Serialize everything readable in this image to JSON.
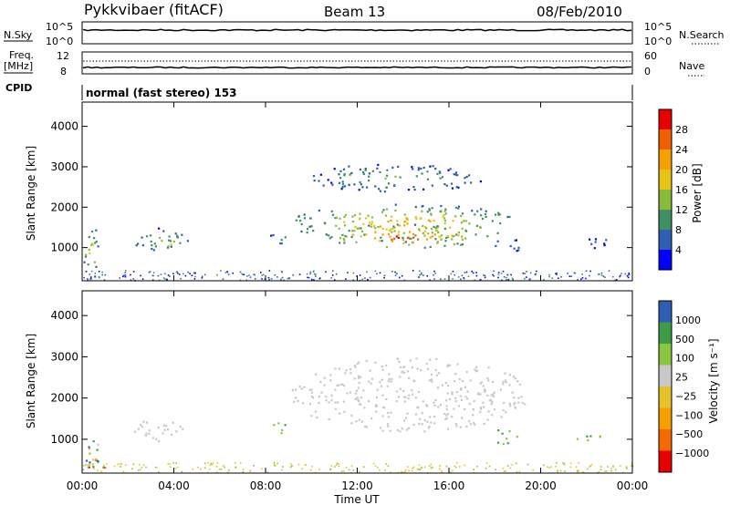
{
  "header": {
    "station": "Pykkvibaer (fitACF)",
    "beam": "Beam 13",
    "date": "08/Feb/2010"
  },
  "status_panels": {
    "nsky_label": "N.Sky",
    "nsearch_label": "N.Search",
    "nsky_ticks": [
      "10^5",
      "10^0"
    ],
    "nsearch_ticks": [
      "10^5",
      "10^0"
    ],
    "freq_label_line1": "Freq.",
    "freq_label_line2": "[MHz]",
    "freq_ticks": [
      "12",
      "8"
    ],
    "nave_label": "Nave",
    "nave_ticks": [
      "60",
      "0"
    ],
    "cpid_label": "CPID",
    "cpid_text": "normal (fast stereo) 153"
  },
  "colors": {
    "power_scale": [
      "#0000ff",
      "#2e5fb0",
      "#3f8f65",
      "#88bb3a",
      "#e5c417",
      "#f3a000",
      "#f06000",
      "#e80000"
    ],
    "velocity_scale": [
      "#e80000",
      "#f36a00",
      "#f5a000",
      "#e7c12b",
      "#c8c8c8",
      "#88c83e",
      "#3f9b4a",
      "#2f5fb5"
    ],
    "ground_scatter": "#c8c8c8"
  },
  "chart_data": [
    {
      "type": "heatmap",
      "name": "power",
      "x_unit": "hours UT",
      "y_unit": "km",
      "xlim": [
        0,
        24
      ],
      "ylim": [
        180,
        4600
      ],
      "xlabel": "Time UT",
      "ylabel": "Slant Range [km]",
      "y_ticks": [
        1000,
        2000,
        3000,
        4000
      ],
      "x_ticks": [
        "00:00",
        "04:00",
        "08:00",
        "12:00",
        "16:00",
        "20:00",
        "00:00"
      ],
      "colorbar_label": "Power [dB]",
      "colorbar_ticks": [
        "28",
        "24",
        "20",
        "16",
        "12",
        "8",
        "4"
      ],
      "colorbar_range": [
        0,
        30
      ],
      "blobs": [
        {
          "t0": 2.1,
          "t1": 4.6,
          "r0": 950,
          "r1": 1500,
          "peak": 14
        },
        {
          "t0": 2.8,
          "t1": 4.3,
          "r0": 1000,
          "r1": 1250,
          "peak": 20
        },
        {
          "t0": 9.0,
          "t1": 19.0,
          "r0": 1150,
          "r1": 2100,
          "peak": 22
        },
        {
          "t0": 10.5,
          "t1": 17.5,
          "r0": 1000,
          "r1": 1600,
          "peak": 27
        },
        {
          "t0": 9.8,
          "t1": 17.5,
          "r0": 2400,
          "r1": 3100,
          "peak": 12
        },
        {
          "t0": 8.2,
          "t1": 9.1,
          "r0": 1100,
          "r1": 1500,
          "peak": 10
        },
        {
          "t0": 17.8,
          "t1": 19.2,
          "r0": 900,
          "r1": 1300,
          "peak": 8
        },
        {
          "t0": 0.0,
          "t1": 0.7,
          "r0": 200,
          "r1": 1600,
          "peak": 18
        },
        {
          "t0": 21.8,
          "t1": 23.0,
          "r0": 1000,
          "r1": 1300,
          "peak": 6
        }
      ]
    },
    {
      "type": "heatmap",
      "name": "velocity",
      "x_unit": "hours UT",
      "y_unit": "km",
      "xlim": [
        0,
        24
      ],
      "ylim": [
        180,
        4600
      ],
      "xlabel": "Time UT",
      "ylabel": "Slant Range [km]",
      "y_ticks": [
        1000,
        2000,
        3000,
        4000
      ],
      "x_ticks": [
        "00:00",
        "04:00",
        "08:00",
        "12:00",
        "16:00",
        "20:00",
        "00:00"
      ],
      "colorbar_label": "Velocity [m s⁻¹]",
      "colorbar_ticks": [
        "1000",
        "500",
        "100",
        "25",
        "−25",
        "−100",
        "−500",
        "−1000"
      ],
      "blobs": [
        {
          "t0": 9.0,
          "t1": 19.5,
          "r0": 1200,
          "r1": 3000,
          "kind": "ground"
        },
        {
          "t0": 2.1,
          "t1": 4.6,
          "r0": 950,
          "r1": 1500,
          "kind": "ground"
        },
        {
          "t0": 8.2,
          "t1": 9.1,
          "r0": 1100,
          "r1": 1500,
          "kind": "green"
        },
        {
          "t0": 17.8,
          "t1": 19.0,
          "r0": 900,
          "r1": 1300,
          "kind": "green"
        },
        {
          "t0": 21.5,
          "t1": 23.0,
          "r0": 950,
          "r1": 1200,
          "kind": "green"
        },
        {
          "t0": 0.0,
          "t1": 1.2,
          "r0": 200,
          "r1": 1000,
          "kind": "mixed"
        }
      ]
    }
  ]
}
